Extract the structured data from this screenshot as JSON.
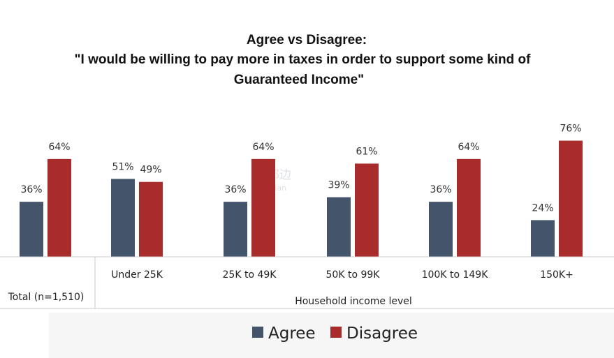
{
  "chart_data": {
    "type": "bar",
    "title_lines": [
      "Agree vs Disagree:",
      "\"I would be willing to pay more in taxes in order to support some kind of",
      "Guaranteed Income\""
    ],
    "categories": [
      "Total (n=1,510)",
      "Under 25K",
      "25K to 49K",
      "50K to 99K",
      "100K to 149K",
      "150K+"
    ],
    "group_label": "Household income level",
    "series": [
      {
        "name": "Agree",
        "color": "#44546a",
        "values": [
          36,
          51,
          36,
          39,
          36,
          24
        ]
      },
      {
        "name": "Disagree",
        "color": "#a82c2b",
        "values": [
          64,
          49,
          64,
          61,
          64,
          76
        ]
      }
    ],
    "value_labels": {
      "Agree": [
        "36%",
        "51%",
        "36%",
        "39%",
        "36%",
        "24%"
      ],
      "Disagree": [
        "64%",
        "49%",
        "64%",
        "61%",
        "64%",
        "76%"
      ]
    },
    "ylim": [
      0,
      100
    ],
    "grid": false,
    "legend_position": "bottom"
  },
  "watermark": {
    "chinese": "海邦边",
    "latin": "Hinbian"
  }
}
